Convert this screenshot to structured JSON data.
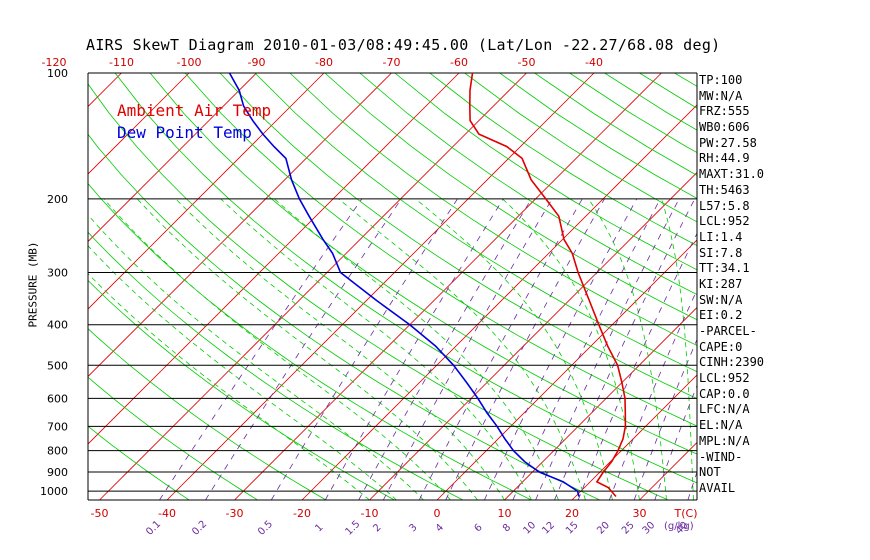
{
  "title": "AIRS SkewT Diagram 2010-01-03/08:49:45.00 (Lat/Lon -22.27/68.08 deg)",
  "ylabel": "PRESSURE (MB)",
  "legend": {
    "ambient": "Ambient Air Temp",
    "dewpoint": "Dew Point Temp"
  },
  "stats": [
    "TP:100",
    "MW:N/A",
    "FRZ:555",
    "WB0:606",
    "PW:27.58",
    "RH:44.9",
    "MAXT:31.0",
    "TH:5463",
    "L57:5.8",
    "LCL:952",
    "LI:1.4",
    "SI:7.8",
    "TT:34.1",
    "KI:287",
    "SW:N/A",
    "EI:0.2",
    "-PARCEL-",
    "CAPE:0",
    "CINH:2390",
    "LCL:952",
    "CAP:0.0",
    "LFC:N/A",
    "EL:N/A",
    "MPL:N/A",
    "-WIND-",
    "NOT",
    "AVAIL"
  ],
  "colors": {
    "temperature": "#e00000",
    "dewpoint": "#0000dd",
    "isotherm": "#e00000",
    "dry_adiabat": "#00cc00",
    "moist_adiabat": "#00cc00",
    "mixing_ratio": "#6a2ca0",
    "axis": "#000000"
  },
  "chart_data": {
    "type": "line",
    "title": "AIRS SkewT Diagram 2010-01-03/08:49:45.00 (Lat/Lon -22.27/68.08 deg)",
    "ylabel": "PRESSURE (MB)",
    "xlabel": "T(C)",
    "y_scale": "log",
    "y_reversed": true,
    "ylim": [
      1050,
      100
    ],
    "xlim": [
      -52,
      32
    ],
    "pressure_ticks": [
      100,
      200,
      300,
      400,
      500,
      600,
      700,
      800,
      900,
      1000
    ],
    "top_temp_ticks": [
      -120,
      -110,
      -100,
      -90,
      -80,
      -70,
      -60,
      -50,
      -40
    ],
    "bottom_temp_ticks": [
      -50,
      -40,
      -30,
      -20,
      -10,
      0,
      10,
      20,
      30
    ],
    "mixing_ratio_labels": [
      "0.1",
      "0.2",
      "0.5",
      "1",
      "1.5",
      "2",
      "3",
      "4",
      "6",
      "8",
      "10",
      "12",
      "15",
      "20",
      "25",
      "30",
      "40"
    ],
    "mixing_ratio_unit": "(g/kg)",
    "series": [
      {
        "name": "Ambient Air Temp",
        "pressure": [
          1030,
          980,
          950,
          900,
          850,
          800,
          750,
          700,
          650,
          600,
          550,
          500,
          450,
          400,
          350,
          300,
          270,
          250,
          220,
          200,
          180,
          160,
          150,
          140,
          130,
          120,
          110,
          100
        ],
        "values": [
          26.0,
          23.5,
          21.0,
          20.5,
          20.2,
          19.5,
          18.5,
          17.0,
          15.0,
          12.8,
          10.0,
          6.8,
          2.5,
          -2.0,
          -7.0,
          -12.8,
          -16.5,
          -19.8,
          -24.0,
          -28.5,
          -33.5,
          -38.0,
          -42.0,
          -48.0,
          -51.3,
          -53.5,
          -55.8,
          -58.0
        ]
      },
      {
        "name": "Dew Point Temp",
        "pressure": [
          1030,
          1000,
          950,
          900,
          850,
          800,
          750,
          700,
          650,
          600,
          550,
          500,
          450,
          400,
          350,
          300,
          270,
          250,
          220,
          200,
          180,
          160,
          150,
          140,
          130,
          120,
          110,
          100
        ],
        "values": [
          20.5,
          19.5,
          16.0,
          11.0,
          7.3,
          4.0,
          1.0,
          -2.0,
          -5.5,
          -9.0,
          -13.0,
          -17.5,
          -23.0,
          -30.0,
          -38.5,
          -48.0,
          -52.0,
          -55.5,
          -61.0,
          -65.0,
          -69.0,
          -73.0,
          -76.5,
          -80.0,
          -83.5,
          -87.0,
          -90.0,
          -94.0
        ]
      }
    ]
  }
}
